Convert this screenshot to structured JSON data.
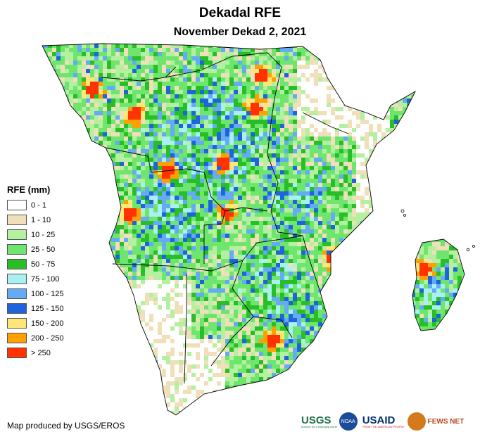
{
  "title": "Dekadal RFE",
  "subtitle": "November Dekad 2, 2021",
  "legend": {
    "title": "RFE (mm)",
    "items": [
      {
        "label": "0 - 1",
        "color": "#ffffff"
      },
      {
        "label": "1 - 10",
        "color": "#f1dfba"
      },
      {
        "label": "10 - 25",
        "color": "#b4f0a0"
      },
      {
        "label": "25 - 50",
        "color": "#6ee66e"
      },
      {
        "label": "50 - 75",
        "color": "#28be28"
      },
      {
        "label": "75 - 100",
        "color": "#aaf0f0"
      },
      {
        "label": "100 - 125",
        "color": "#64aaf5"
      },
      {
        "label": "125 - 150",
        "color": "#1e64dc"
      },
      {
        "label": "150 - 200",
        "color": "#ffe678"
      },
      {
        "label": "200 - 250",
        "color": "#ffa000"
      },
      {
        "label": "> 250",
        "color": "#ff3200"
      }
    ]
  },
  "credit": "Map produced by USGS/EROS",
  "logos": {
    "usgs": "USGS",
    "usgs_tagline": "science for a changing world",
    "noaa": "NOAA",
    "usaid": "USAID",
    "usaid_tagline": "FROM THE AMERICAN PEOPLE",
    "fewsnet": "FEWS NET"
  }
}
